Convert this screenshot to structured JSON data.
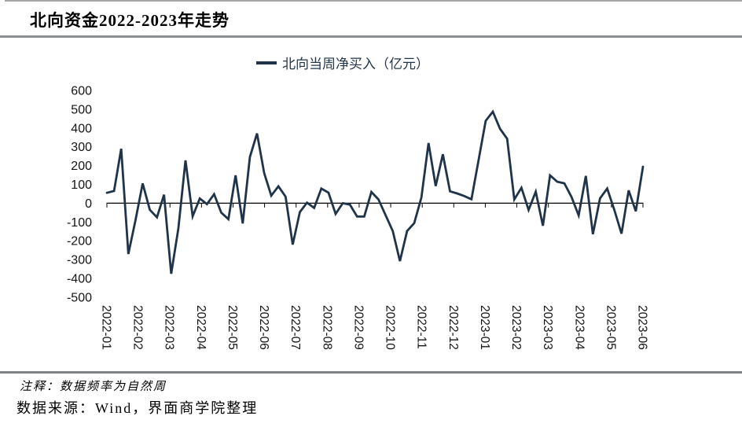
{
  "title": "北向资金2022-2023年走势",
  "legend": {
    "label": "北向当周净买入（亿元）"
  },
  "notes": {
    "note1": "注释：数据频率为自然周",
    "source": "数据来源：Wind，界面商学院整理"
  },
  "chart_data": {
    "type": "line",
    "title": "北向资金2022-2023年走势",
    "series_name": "北向当周净买入（亿元）",
    "unit": "亿元",
    "frequency": "weekly",
    "x_categories": [
      "2022-01",
      "2022-02",
      "2022-03",
      "2022-04",
      "2022-05",
      "2022-06",
      "2022-07",
      "2022-08",
      "2022-09",
      "2022-10",
      "2022-11",
      "2022-12",
      "2023-01",
      "2023-02",
      "2023-03",
      "2023-04",
      "2023-05",
      "2023-06"
    ],
    "values": [
      55,
      65,
      290,
      -270,
      -90,
      105,
      -35,
      -75,
      45,
      -375,
      -135,
      228,
      -70,
      25,
      -5,
      48,
      -50,
      -85,
      148,
      -108,
      245,
      371,
      160,
      40,
      90,
      35,
      -220,
      -47,
      3,
      -25,
      78,
      56,
      -57,
      0,
      -8,
      -71,
      -71,
      60,
      20,
      -64,
      -148,
      -308,
      -148,
      -106,
      30,
      320,
      91,
      260,
      63,
      52,
      38,
      21,
      230,
      438,
      487,
      396,
      343,
      20,
      82,
      -36,
      61,
      -120,
      148,
      114,
      106,
      33,
      -65,
      145,
      -165,
      26,
      78,
      -36,
      -162,
      68,
      -43,
      194
    ],
    "ylim": [
      -500,
      600
    ],
    "ytick_step": 100,
    "yticks": [
      600,
      500,
      400,
      300,
      200,
      100,
      0,
      -100,
      -200,
      -300,
      -400,
      -500
    ],
    "line_color": "#1f3349",
    "axis_color": "#000000",
    "grid": false,
    "legend_position": "top",
    "x_label_rotation_deg": 90
  }
}
